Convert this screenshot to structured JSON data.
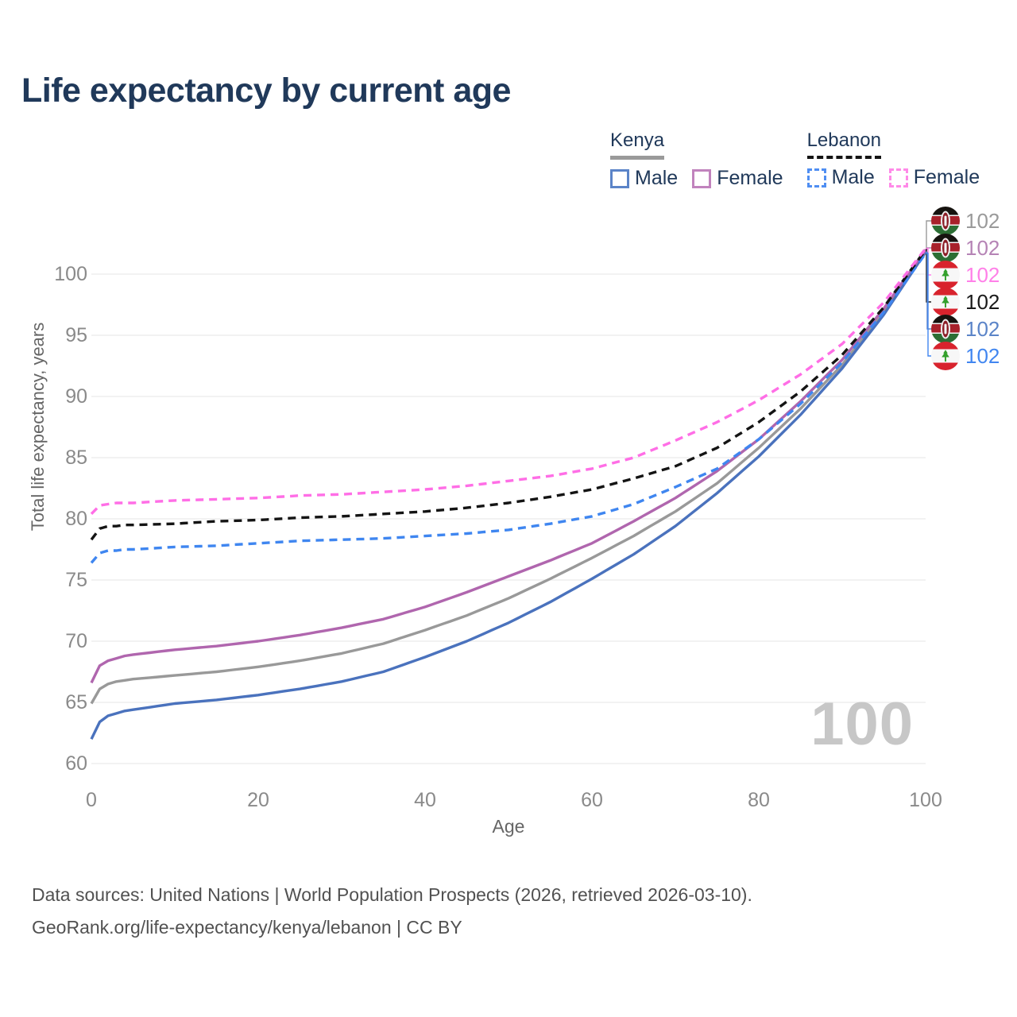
{
  "title": "Life expectancy by current age",
  "legend": {
    "groups": [
      {
        "country": "Kenya",
        "line_style": "solid",
        "items": [
          {
            "label": "Male",
            "color": "#5b84c8"
          },
          {
            "label": "Female",
            "color": "#c183bd"
          }
        ]
      },
      {
        "country": "Lebanon",
        "line_style": "dashed",
        "items": [
          {
            "label": "Male",
            "color": "#4f8ef2"
          },
          {
            "label": "Female",
            "color": "#ff8ae8"
          }
        ]
      }
    ]
  },
  "watermark": "100",
  "footer": {
    "line1": "Data sources: United Nations | World Population Prospects (2026, retrieved 2026-03-10).",
    "line2": "GeoRank.org/life-expectancy/kenya/lebanon | CC BY"
  },
  "colors": {
    "title": "#20395a",
    "tick_labels": "#8a8a8a",
    "axis_titles": "#666666",
    "grid": "#ebebeb",
    "watermark": "#c7c7c7",
    "footer": "#515151"
  },
  "chart_data": {
    "type": "line",
    "title": "Life expectancy by current age",
    "xlabel": "Age",
    "ylabel": "Total life expectancy, years",
    "xlim": [
      0,
      100
    ],
    "ylim": [
      59,
      103.5
    ],
    "xticks": [
      0,
      20,
      40,
      60,
      80,
      100
    ],
    "yticks": [
      60,
      65,
      70,
      75,
      80,
      85,
      90,
      95,
      100
    ],
    "grid": "horizontal",
    "legend_position": "top-right",
    "x": [
      0,
      1,
      2,
      3,
      4,
      5,
      10,
      15,
      20,
      25,
      30,
      35,
      40,
      45,
      50,
      55,
      60,
      65,
      70,
      75,
      80,
      85,
      90,
      95,
      100
    ],
    "series": [
      {
        "name": "Kenya both sexes",
        "country": "Kenya",
        "sex": "both",
        "line": "solid",
        "color": "#999999",
        "values": [
          64.9,
          66.1,
          66.5,
          66.7,
          66.8,
          66.9,
          67.2,
          67.5,
          67.9,
          68.4,
          69.0,
          69.8,
          70.9,
          72.1,
          73.5,
          75.1,
          76.8,
          78.6,
          80.6,
          82.9,
          85.8,
          89.0,
          92.6,
          96.9,
          101.9
        ]
      },
      {
        "name": "Kenya male",
        "country": "Kenya",
        "sex": "male",
        "line": "solid",
        "color": "#4a72bd",
        "values": [
          62.0,
          63.4,
          63.9,
          64.1,
          64.3,
          64.4,
          64.9,
          65.2,
          65.6,
          66.1,
          66.7,
          67.5,
          68.7,
          70.0,
          71.5,
          73.2,
          75.1,
          77.1,
          79.4,
          82.1,
          85.1,
          88.5,
          92.3,
          96.7,
          101.8
        ]
      },
      {
        "name": "Kenya female",
        "country": "Kenya",
        "sex": "female",
        "line": "solid",
        "color": "#b066ae",
        "values": [
          66.6,
          68.0,
          68.4,
          68.6,
          68.8,
          68.9,
          69.3,
          69.6,
          70.0,
          70.5,
          71.1,
          71.8,
          72.8,
          74.0,
          75.3,
          76.6,
          78.0,
          79.8,
          81.7,
          83.9,
          86.5,
          89.6,
          93.0,
          97.2,
          102.0
        ]
      },
      {
        "name": "Lebanon male",
        "country": "Lebanon",
        "sex": "male",
        "line": "dashed",
        "color": "#3f86f0",
        "values": [
          76.4,
          77.2,
          77.4,
          77.4,
          77.5,
          77.5,
          77.7,
          77.8,
          78.0,
          78.2,
          78.3,
          78.4,
          78.6,
          78.8,
          79.1,
          79.6,
          80.2,
          81.2,
          82.6,
          84.1,
          86.5,
          89.4,
          92.8,
          96.9,
          101.7
        ]
      },
      {
        "name": "Lebanon both sexes",
        "country": "Lebanon",
        "sex": "both",
        "line": "dashed",
        "color": "#141414",
        "values": [
          78.3,
          79.2,
          79.4,
          79.4,
          79.5,
          79.5,
          79.6,
          79.8,
          79.9,
          80.1,
          80.2,
          80.4,
          80.6,
          80.9,
          81.3,
          81.8,
          82.4,
          83.3,
          84.3,
          85.8,
          87.9,
          90.4,
          93.4,
          97.3,
          102.0
        ]
      },
      {
        "name": "Lebanon female",
        "country": "Lebanon",
        "sex": "female",
        "line": "dashed",
        "color": "#ff6ee6",
        "values": [
          80.4,
          81.1,
          81.2,
          81.3,
          81.3,
          81.3,
          81.5,
          81.6,
          81.7,
          81.9,
          82.0,
          82.2,
          82.4,
          82.7,
          83.1,
          83.5,
          84.1,
          85.0,
          86.4,
          87.9,
          89.7,
          91.8,
          94.3,
          97.7,
          102.1
        ]
      }
    ],
    "end_labels": [
      {
        "flag": "kenya",
        "series": "Kenya both sexes",
        "value": "102",
        "color": "#9a9a9a"
      },
      {
        "flag": "kenya",
        "series": "Kenya female",
        "value": "102",
        "color": "#b583b5"
      },
      {
        "flag": "lebanon",
        "series": "Lebanon female",
        "value": "102",
        "color": "#ff80e8"
      },
      {
        "flag": "lebanon",
        "series": "Lebanon both sexes",
        "value": "102",
        "color": "#1a1a1a"
      },
      {
        "flag": "kenya",
        "series": "Kenya male",
        "value": "102",
        "color": "#5b84c8"
      },
      {
        "flag": "lebanon",
        "series": "Lebanon male",
        "value": "102",
        "color": "#4186f0"
      }
    ]
  }
}
